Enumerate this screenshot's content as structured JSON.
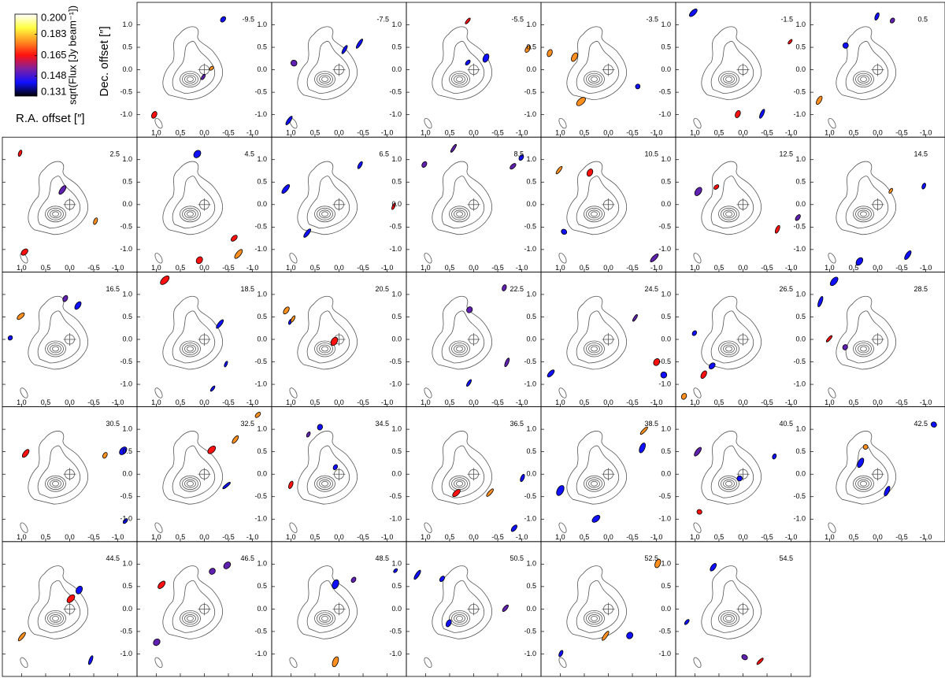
{
  "chart_data": {
    "type": "channel-map",
    "xlabel": "R.A. offset [″]",
    "ylabel": "Dec. offset [″]",
    "colorbar_label": "sqrt(Flux [Jy beam⁻¹])",
    "colorbar_colors": [
      "#ffffff",
      "#ffff40",
      "#ff9020",
      "#ff1010",
      "#8020a0",
      "#1010ff",
      "#000000"
    ],
    "colorbar_lim": [
      0.131,
      0.2
    ],
    "colorbar_ticks": [
      {
        "value": 0.2,
        "label": "0.200"
      },
      {
        "value": 0.183,
        "label": "0.183"
      },
      {
        "value": 0.165,
        "label": "0.165"
      },
      {
        "value": 0.148,
        "label": "0.148"
      },
      {
        "value": 0.131,
        "label": "0.131"
      }
    ],
    "xlim": [
      1.4,
      -1.4
    ],
    "ylim": [
      -1.5,
      1.5
    ],
    "xticks": [
      {
        "value": 1,
        "label": "1.0"
      },
      0.5,
      {
        "value": 0,
        "label": "0.0"
      },
      -0.5,
      {
        "value": -1,
        "label": "-1.0"
      }
    ],
    "yticks": [
      {
        "value": 1,
        "label": "1.0"
      },
      0.5,
      {
        "value": 0,
        "label": "0.0"
      },
      -0.5,
      {
        "value": -1,
        "label": "-1.0"
      }
    ],
    "panels": [
      "-9.5",
      "-7.5",
      "-5.5",
      "-3.5",
      "-1.5",
      "0.5",
      "2.5",
      "4.5",
      "6.5",
      "8.5",
      "10.5",
      "12.5",
      "14.5",
      "16.5",
      "18.5",
      "20.5",
      "22.5",
      "24.5",
      "26.5",
      "28.5",
      "30.5",
      "32.5",
      "34.5",
      "36.5",
      "38.5",
      "40.5",
      "42.5",
      "44.5",
      "46.5",
      "48.5",
      "50.5",
      "52.5",
      "54.5"
    ]
  }
}
